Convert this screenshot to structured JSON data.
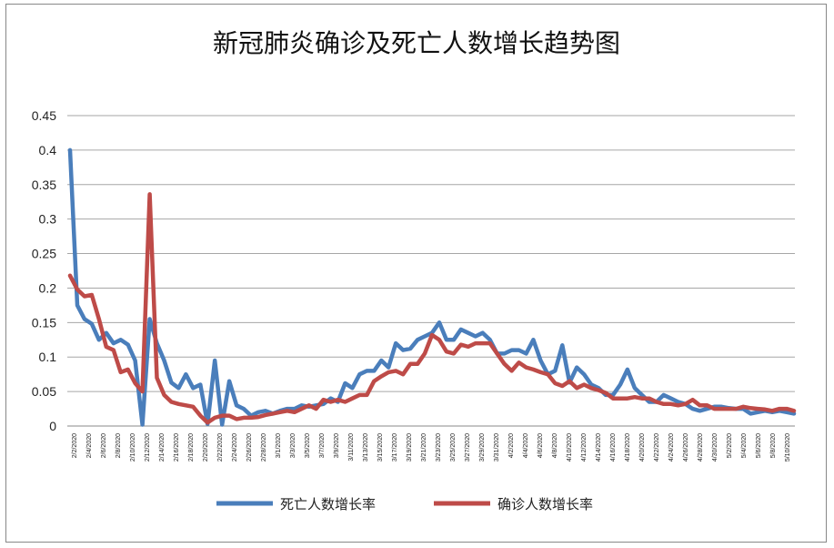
{
  "chart_data": {
    "type": "line",
    "title": "新冠肺炎确诊及死亡人数增长趋势图",
    "xlabel": "",
    "ylabel": "",
    "ylim": [
      0,
      0.45
    ],
    "yticks": [
      "0",
      "0.05",
      "0.1",
      "0.15",
      "0.2",
      "0.25",
      "0.3",
      "0.35",
      "0.4",
      "0.45"
    ],
    "grid": true,
    "legend_position": "bottom",
    "x_tick_labels": [
      "2/2/2020",
      "2/4/2020",
      "2/6/2020",
      "2/8/2020",
      "2/10/2020",
      "2/12/2020",
      "2/14/2020",
      "2/16/2020",
      "2/18/2020",
      "2/20/2020",
      "2/22/2020",
      "2/24/2020",
      "2/26/2020",
      "2/28/2020",
      "3/1/2020",
      "3/3/2020",
      "3/5/2020",
      "3/7/2020",
      "3/9/2020",
      "3/11/2020",
      "3/13/2020",
      "3/15/2020",
      "3/17/2020",
      "3/19/2020",
      "3/21/2020",
      "3/23/2020",
      "3/25/2020",
      "3/27/2020",
      "3/29/2020",
      "3/31/2020",
      "4/2/2020",
      "4/4/2020",
      "4/6/2020",
      "4/8/2020",
      "4/10/2020",
      "4/12/2020",
      "4/14/2020",
      "4/16/2020",
      "4/18/2020",
      "4/20/2020",
      "4/22/2020",
      "4/24/2020",
      "4/26/2020",
      "4/28/2020",
      "4/30/2020",
      "5/2/2020",
      "5/4/2020",
      "5/6/2020",
      "5/8/2020",
      "5/10/2020"
    ],
    "series": [
      {
        "name": "死亡人数增长率",
        "color": "#4a7ebb",
        "values": [
          0.4,
          0.175,
          0.155,
          0.148,
          0.125,
          0.135,
          0.12,
          0.125,
          0.118,
          0.095,
          0.002,
          0.155,
          0.12,
          0.095,
          0.063,
          0.055,
          0.075,
          0.055,
          0.06,
          0.003,
          0.095,
          0.002,
          0.065,
          0.03,
          0.025,
          0.015,
          0.02,
          0.022,
          0.018,
          0.022,
          0.025,
          0.025,
          0.03,
          0.028,
          0.03,
          0.032,
          0.04,
          0.035,
          0.062,
          0.055,
          0.075,
          0.08,
          0.08,
          0.095,
          0.085,
          0.12,
          0.11,
          0.112,
          0.125,
          0.13,
          0.135,
          0.15,
          0.125,
          0.125,
          0.14,
          0.135,
          0.13,
          0.135,
          0.125,
          0.105,
          0.105,
          0.11,
          0.11,
          0.105,
          0.125,
          0.095,
          0.075,
          0.08,
          0.117,
          0.063,
          0.085,
          0.075,
          0.06,
          0.055,
          0.045,
          0.045,
          0.06,
          0.082,
          0.055,
          0.045,
          0.035,
          0.035,
          0.045,
          0.04,
          0.035,
          0.032,
          0.025,
          0.022,
          0.025,
          0.028,
          0.028,
          0.026,
          0.025,
          0.025,
          0.018,
          0.02,
          0.022,
          0.02,
          0.022,
          0.02,
          0.018
        ]
      },
      {
        "name": "确诊人数增长率",
        "color": "#be4b48",
        "values": [
          0.218,
          0.198,
          0.188,
          0.19,
          0.155,
          0.115,
          0.11,
          0.078,
          0.082,
          0.062,
          0.05,
          0.336,
          0.07,
          0.045,
          0.035,
          0.032,
          0.03,
          0.028,
          0.015,
          0.005,
          0.012,
          0.015,
          0.015,
          0.01,
          0.012,
          0.012,
          0.013,
          0.016,
          0.018,
          0.02,
          0.022,
          0.02,
          0.025,
          0.03,
          0.025,
          0.038,
          0.035,
          0.038,
          0.035,
          0.04,
          0.045,
          0.045,
          0.065,
          0.072,
          0.078,
          0.08,
          0.075,
          0.09,
          0.09,
          0.105,
          0.132,
          0.125,
          0.108,
          0.105,
          0.118,
          0.115,
          0.12,
          0.12,
          0.12,
          0.105,
          0.09,
          0.08,
          0.092,
          0.085,
          0.082,
          0.078,
          0.075,
          0.062,
          0.058,
          0.065,
          0.055,
          0.06,
          0.055,
          0.052,
          0.048,
          0.04,
          0.04,
          0.04,
          0.042,
          0.04,
          0.04,
          0.035,
          0.032,
          0.032,
          0.03,
          0.032,
          0.038,
          0.03,
          0.03,
          0.025,
          0.025,
          0.025,
          0.025,
          0.028,
          0.026,
          0.025,
          0.024,
          0.022,
          0.025,
          0.025,
          0.022
        ]
      }
    ]
  }
}
